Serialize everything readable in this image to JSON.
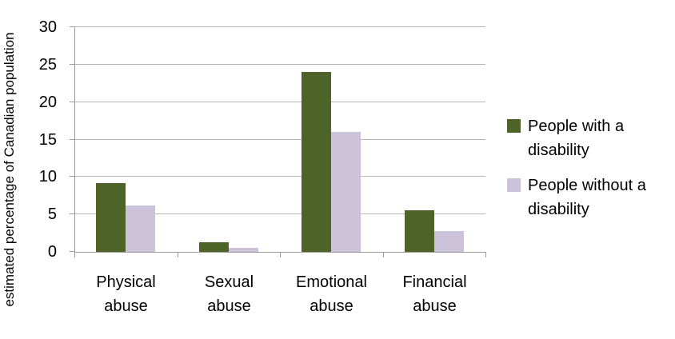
{
  "chart_data": {
    "type": "bar",
    "title": "",
    "xlabel": "",
    "ylabel": "estimated percentage of Canadian population",
    "categories": [
      "Physical abuse",
      "Sexual abuse",
      "Emotional abuse",
      "Financial abuse"
    ],
    "series": [
      {
        "name": "People with a disability",
        "values": [
          9.2,
          1.3,
          24,
          5.5
        ],
        "color": "#4e6327"
      },
      {
        "name": "People without a disability",
        "values": [
          6.2,
          0.5,
          16,
          2.8
        ],
        "color": "#ccc2da"
      }
    ],
    "ylim": [
      0,
      30
    ],
    "yticks": [
      0,
      5,
      10,
      15,
      20,
      25,
      30
    ],
    "grid": true,
    "legend_position": "right"
  },
  "colors": {
    "gridline": "#b5b5b5",
    "axis": "#9a9a9a",
    "text": "#000000"
  }
}
